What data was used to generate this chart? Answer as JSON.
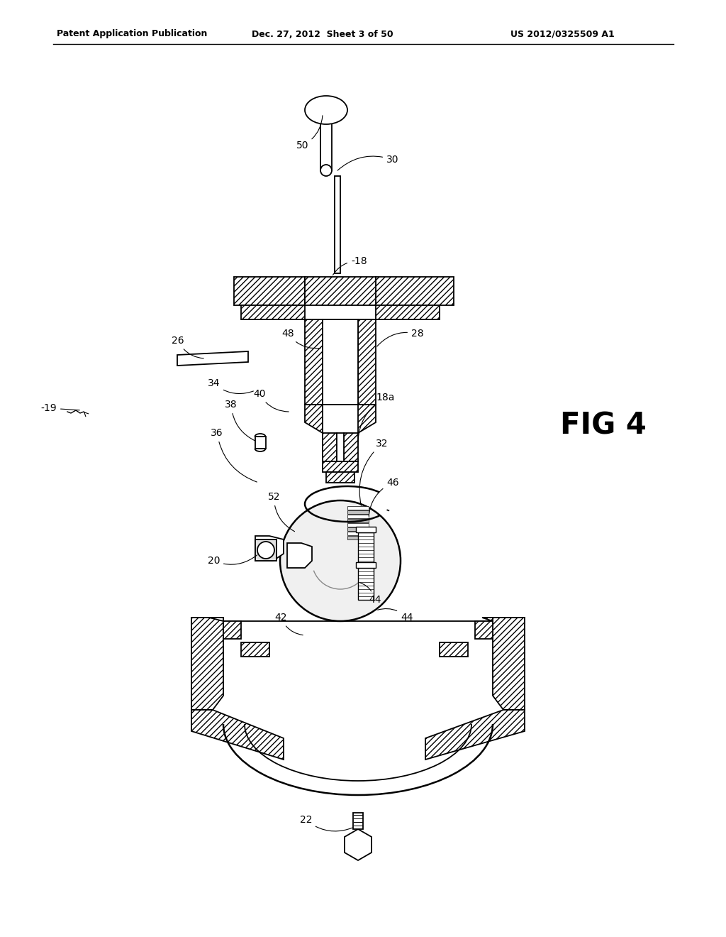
{
  "background_color": "#ffffff",
  "fig_width": 10.24,
  "fig_height": 13.2,
  "header_text": "Patent Application Publication",
  "header_date": "Dec. 27, 2012  Sheet 3 of 50",
  "header_patent": "US 2012/0325509 A1",
  "fig_label": "FIG 4",
  "line_color": "#000000",
  "hatch_color": "#000000",
  "bg_color": "#ffffff"
}
